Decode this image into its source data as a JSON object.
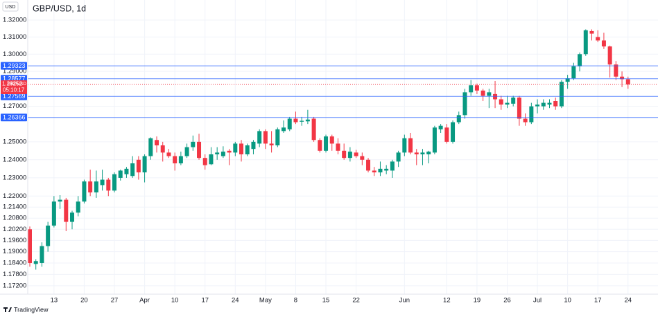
{
  "chart_data": {
    "type": "candlestick",
    "title": "GBP/USD, 1d",
    "currency": "USD",
    "watermark": "TradingView",
    "log_scale": true,
    "grid": true,
    "up_color": "#089981",
    "down_color": "#f23645",
    "level_color": "#2962ff",
    "ylim": [
      1.1676,
      1.3319
    ],
    "yticks": [
      {
        "value": 1.172,
        "label": "1.17200"
      },
      {
        "value": 1.178,
        "label": "1.17800"
      },
      {
        "value": 1.184,
        "label": "1.18400"
      },
      {
        "value": 1.19,
        "label": "1.19000"
      },
      {
        "value": 1.196,
        "label": "1.19600"
      },
      {
        "value": 1.202,
        "label": "1.20200"
      },
      {
        "value": 1.208,
        "label": "1.20800"
      },
      {
        "value": 1.214,
        "label": "1.21400"
      },
      {
        "value": 1.22,
        "label": "1.22000"
      },
      {
        "value": 1.23,
        "label": "1.23000"
      },
      {
        "value": 1.24,
        "label": "1.24000"
      },
      {
        "value": 1.25,
        "label": "1.25000"
      },
      {
        "value": 1.27,
        "label": "1.27000"
      },
      {
        "value": 1.29,
        "label": "1.29000"
      },
      {
        "value": 1.3,
        "label": "1.30000"
      },
      {
        "value": 1.31,
        "label": "1.31000"
      },
      {
        "value": 1.32,
        "label": "1.32000"
      }
    ],
    "levels": [
      1.29323,
      1.28577,
      1.27569,
      1.26366
    ],
    "last_price": {
      "value": 1.28252,
      "symbol": "GBPUSD",
      "countdown": "05:10:17"
    },
    "categories": [
      null,
      null,
      null,
      null,
      "13",
      null,
      null,
      null,
      null,
      "20",
      null,
      null,
      null,
      null,
      "27",
      null,
      null,
      null,
      null,
      "Apr",
      null,
      null,
      null,
      null,
      "10",
      null,
      null,
      null,
      null,
      "17",
      null,
      null,
      null,
      null,
      "24",
      null,
      null,
      null,
      null,
      "May",
      null,
      null,
      null,
      null,
      "8",
      null,
      null,
      null,
      null,
      "15",
      null,
      null,
      null,
      null,
      "22",
      null,
      null,
      null,
      null,
      null,
      null,
      null,
      "Jun",
      null,
      null,
      null,
      null,
      null,
      null,
      "12",
      null,
      null,
      null,
      null,
      "19",
      null,
      null,
      null,
      null,
      "26",
      null,
      null,
      null,
      null,
      "Jul",
      null,
      null,
      null,
      null,
      "10",
      null,
      null,
      null,
      null,
      "17",
      null,
      null,
      null,
      null,
      "24"
    ],
    "open": [
      1.202,
      1.1835,
      1.184,
      1.193,
      1.204,
      1.217,
      1.218,
      1.206,
      1.211,
      1.217,
      1.228,
      1.222,
      1.226,
      1.229,
      1.223,
      1.23,
      1.232,
      1.231,
      1.24,
      1.233,
      1.242,
      1.251,
      1.248,
      1.244,
      1.242,
      1.238,
      1.242,
      1.247,
      1.25,
      1.241,
      1.2375,
      1.243,
      1.242,
      1.245,
      1.244,
      1.249,
      1.243,
      1.246,
      1.249,
      1.256,
      1.249,
      1.248,
      1.256,
      1.257,
      1.263,
      1.2613,
      1.2615,
      1.263,
      1.251,
      1.245,
      1.253,
      1.249,
      1.245,
      1.241,
      1.244,
      1.242,
      1.24,
      1.234,
      1.233,
      1.234,
      1.234,
      1.239,
      1.244,
      1.252,
      1.244,
      1.243,
      1.243,
      1.244,
      1.257,
      1.258,
      1.25,
      1.261,
      1.265,
      1.278,
      1.282,
      1.279,
      1.276,
      1.277,
      1.274,
      1.271,
      1.2715,
      1.275,
      1.263,
      1.261,
      1.27,
      1.27,
      1.271,
      1.273,
      1.27,
      1.284,
      1.286,
      1.293,
      1.3,
      1.3135,
      1.31,
      1.308,
      1.3045,
      1.294,
      1.287,
      1.2855
    ],
    "high": [
      1.2035,
      1.186,
      1.195,
      1.206,
      1.22,
      1.2205,
      1.219,
      1.212,
      1.22,
      1.229,
      1.2345,
      1.234,
      1.2345,
      1.23,
      1.233,
      1.2345,
      1.236,
      1.242,
      1.242,
      1.243,
      1.2525,
      1.253,
      1.25,
      1.246,
      1.244,
      1.2445,
      1.249,
      1.2535,
      1.2545,
      1.243,
      1.247,
      1.247,
      1.2475,
      1.246,
      1.25,
      1.251,
      1.249,
      1.251,
      1.257,
      1.257,
      1.256,
      1.258,
      1.262,
      1.264,
      1.267,
      1.264,
      1.268,
      1.264,
      1.252,
      1.254,
      1.254,
      1.252,
      1.249,
      1.247,
      1.2455,
      1.244,
      1.241,
      1.236,
      1.239,
      1.237,
      1.24,
      1.245,
      1.254,
      1.255,
      1.246,
      1.246,
      1.245,
      1.259,
      1.26,
      1.26,
      1.262,
      1.267,
      1.28,
      1.285,
      1.283,
      1.28,
      1.28,
      1.2845,
      1.276,
      1.276,
      1.276,
      1.276,
      1.266,
      1.272,
      1.274,
      1.274,
      1.274,
      1.275,
      1.285,
      1.288,
      1.295,
      1.301,
      1.3145,
      1.3145,
      1.314,
      1.3125,
      1.305,
      1.296,
      1.29,
      1.287
    ],
    "low": [
      1.182,
      1.1805,
      1.182,
      1.19,
      1.203,
      1.213,
      1.201,
      1.202,
      1.209,
      1.216,
      1.22,
      1.219,
      1.223,
      1.22,
      1.222,
      1.2285,
      1.23,
      1.23,
      1.229,
      1.2275,
      1.24,
      1.244,
      1.239,
      1.241,
      1.234,
      1.237,
      1.241,
      1.245,
      1.24,
      1.2345,
      1.237,
      1.24,
      1.241,
      1.237,
      1.242,
      1.239,
      1.242,
      1.243,
      1.247,
      1.246,
      1.244,
      1.247,
      1.255,
      1.256,
      1.26,
      1.259,
      1.26,
      1.25,
      1.244,
      1.244,
      1.245,
      1.243,
      1.24,
      1.239,
      1.241,
      1.237,
      1.233,
      1.231,
      1.231,
      1.232,
      1.23,
      1.236,
      1.242,
      1.243,
      1.237,
      1.237,
      1.238,
      1.243,
      1.255,
      1.249,
      1.249,
      1.26,
      1.263,
      1.276,
      1.277,
      1.273,
      1.269,
      1.269,
      1.268,
      1.269,
      1.27,
      1.259,
      1.259,
      1.26,
      1.266,
      1.268,
      1.269,
      1.268,
      1.269,
      1.28,
      1.285,
      1.29,
      1.299,
      1.308,
      1.307,
      1.303,
      1.2865,
      1.285,
      1.281,
      1.28
    ],
    "close": [
      1.184,
      1.185,
      1.193,
      1.204,
      1.217,
      1.218,
      1.206,
      1.211,
      1.217,
      1.228,
      1.222,
      1.228,
      1.229,
      1.223,
      1.232,
      1.234,
      1.235,
      1.238,
      1.233,
      1.242,
      1.252,
      1.248,
      1.244,
      1.242,
      1.238,
      1.242,
      1.247,
      1.25,
      1.241,
      1.237,
      1.243,
      1.244,
      1.2445,
      1.244,
      1.249,
      1.243,
      1.248,
      1.25,
      1.256,
      1.249,
      1.248,
      1.257,
      1.258,
      1.263,
      1.261,
      1.2618,
      1.2625,
      1.251,
      1.245,
      1.253,
      1.249,
      1.245,
      1.241,
      1.2445,
      1.242,
      1.24,
      1.234,
      1.233,
      1.235,
      1.235,
      1.239,
      1.244,
      1.252,
      1.244,
      1.243,
      1.244,
      1.2445,
      1.258,
      1.259,
      1.25,
      1.261,
      1.265,
      1.278,
      1.282,
      1.279,
      1.276,
      1.278,
      1.274,
      1.271,
      1.272,
      1.275,
      1.263,
      1.261,
      1.27,
      1.271,
      1.272,
      1.272,
      1.27,
      1.284,
      1.286,
      1.293,
      1.3,
      1.314,
      1.312,
      1.308,
      1.3045,
      1.294,
      1.287,
      1.2855,
      1.28252
    ]
  }
}
